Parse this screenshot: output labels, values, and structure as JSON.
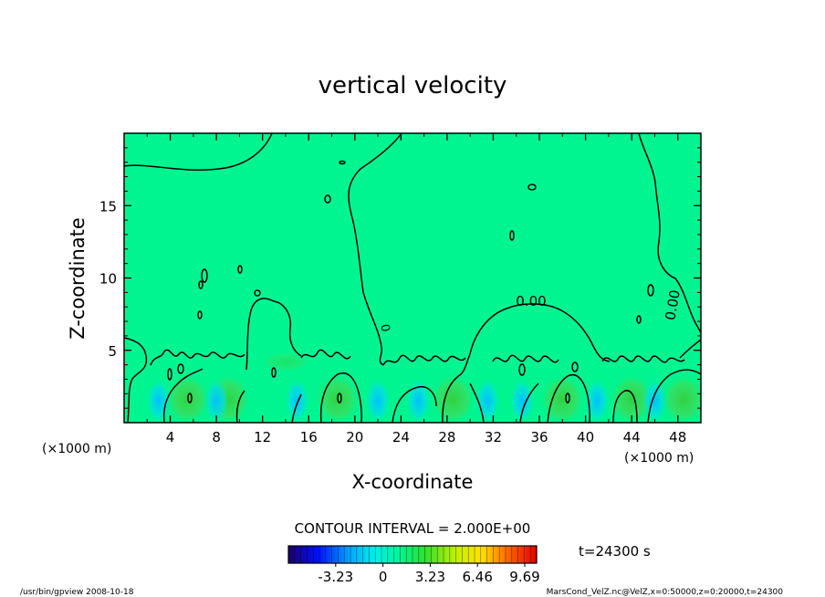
{
  "chart_data": {
    "type": "heatmap",
    "title": "vertical velocity",
    "xlabel": "X-coordinate",
    "ylabel": "Z-coordinate",
    "x_unit_label_left": "(×1000 m)",
    "x_unit_label_right": "(×1000 m)",
    "xlim": [
      0,
      50
    ],
    "ylim": [
      0,
      20
    ],
    "x_ticks": [
      4,
      8,
      12,
      16,
      20,
      24,
      28,
      32,
      36,
      40,
      44,
      48
    ],
    "y_ticks": [
      5,
      10,
      15
    ],
    "contour_interval_text": "CONTOUR INTERVAL = 2.000E+00",
    "contour_labels": [
      "0.00",
      "0",
      "0.00"
    ],
    "time_text": "t=24300 s",
    "colorbar": {
      "tick_labels": [
        "-3.23",
        "0",
        "3.23",
        "6.46",
        "9.69"
      ],
      "tick_values": [
        -3.23,
        0,
        3.23,
        6.46,
        9.69
      ],
      "range": [
        -6.46,
        10.5
      ]
    },
    "grid": false
  },
  "footer": {
    "left": "/usr/bin/gpview   2008-10-18",
    "right": "MarsCond_VelZ.nc@VelZ,x=0:50000,z=0:20000,t=24300"
  },
  "colors": {
    "background_field": "#00f591",
    "contour": "#000000"
  }
}
